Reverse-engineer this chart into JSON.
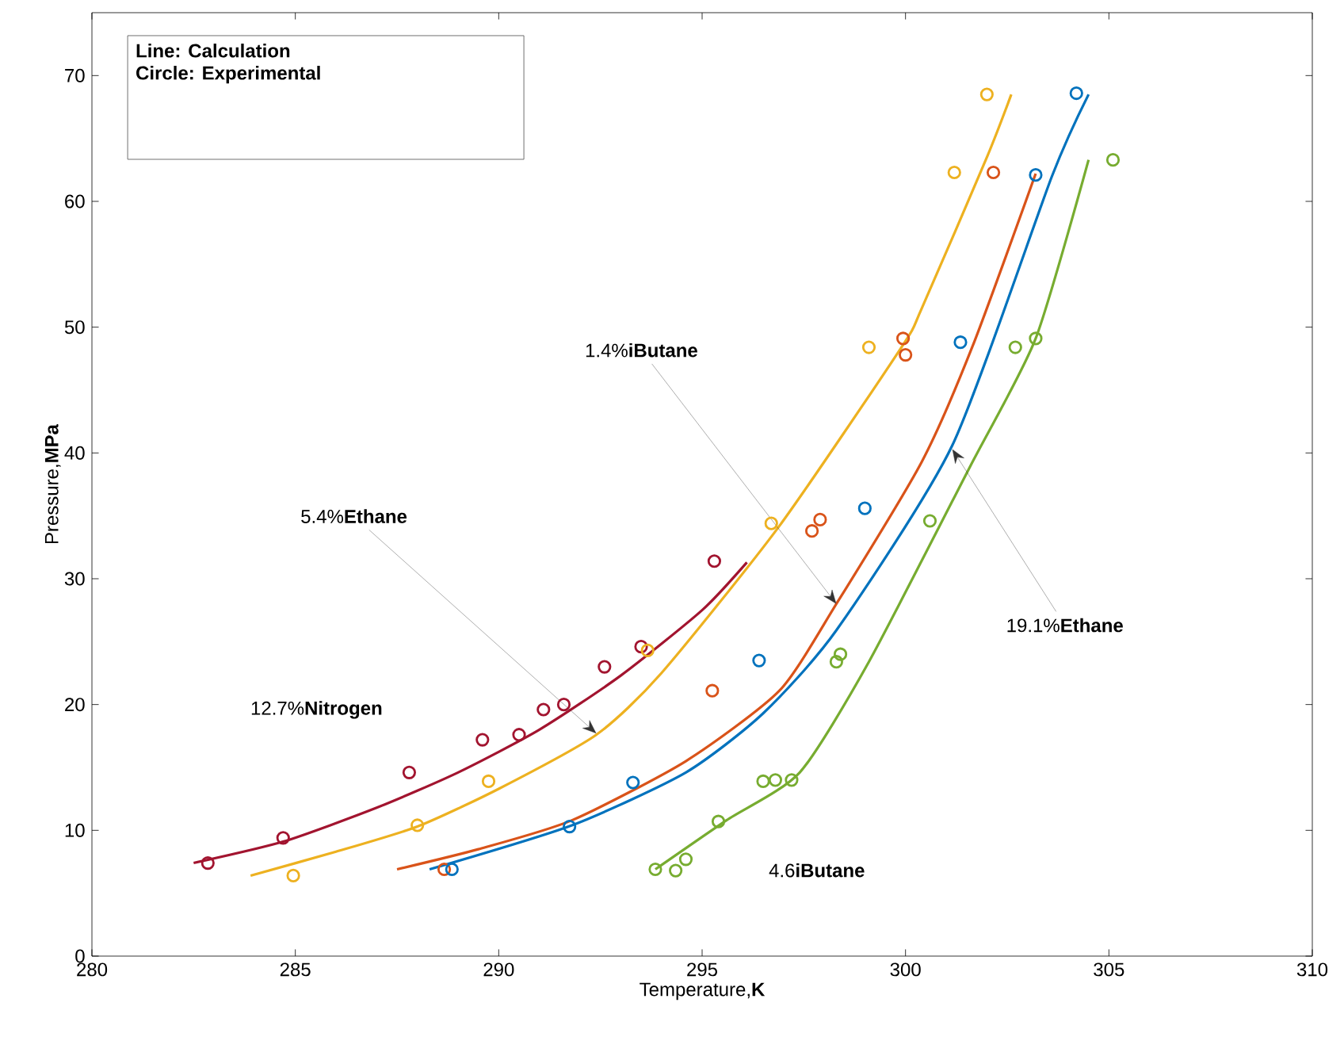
{
  "chart_data": {
    "type": "line",
    "xlabel": "Temperature,**K**",
    "ylabel": "Pressure,**MPa**",
    "xlim": [
      280,
      310
    ],
    "xticks": [
      280,
      285,
      290,
      295,
      300,
      305,
      310
    ],
    "ylim": [
      0,
      75
    ],
    "yticks": [
      0,
      10,
      20,
      30,
      40,
      50,
      60,
      70
    ],
    "grid": false,
    "series": [
      {
        "color": "#a2142f",
        "x": [
          282.5,
          284.7,
          287.0,
          289.0,
          291.0,
          293.0,
          295.0,
          296.1
        ],
        "values": [
          7.4,
          9.1,
          11.8,
          14.6,
          18.0,
          22.3,
          27.5,
          31.3
        ]
      },
      {
        "type": "scatter",
        "marker": "circle",
        "color": "#a2142f",
        "x": [
          282.85,
          284.7,
          287.8,
          289.6,
          290.5,
          291.1,
          291.6,
          292.6,
          293.5,
          295.3
        ],
        "values": [
          7.4,
          9.4,
          14.6,
          17.2,
          17.6,
          19.6,
          20.0,
          23.0,
          24.6,
          31.4
        ]
      },
      {
        "color": "#edb120",
        "x": [
          283.9,
          286.0,
          288.0,
          290.0,
          292.4,
          294.0,
          296.9,
          299.9,
          300.4,
          302.0,
          302.6
        ],
        "values": [
          6.4,
          8.3,
          10.3,
          13.3,
          17.6,
          22.5,
          34.2,
          48.4,
          51.5,
          63.5,
          68.5
        ]
      },
      {
        "type": "scatter",
        "marker": "circle",
        "color": "#edb120",
        "x": [
          284.95,
          288.0,
          289.75,
          293.66,
          296.7,
          299.1,
          301.2,
          302.0
        ],
        "values": [
          6.4,
          10.4,
          13.9,
          24.3,
          34.4,
          48.4,
          62.3,
          68.5
        ]
      },
      {
        "color": "#d95319",
        "x": [
          287.5,
          289.5,
          291.8,
          294.6,
          296.9,
          298.3,
          300.4,
          301.65,
          303.2
        ],
        "values": [
          6.9,
          8.5,
          10.8,
          15.5,
          21.1,
          28.0,
          39.3,
          48.5,
          62.2
        ]
      },
      {
        "type": "scatter",
        "marker": "circle",
        "color": "#d95319",
        "x": [
          288.66,
          295.25,
          297.7,
          297.9,
          299.94,
          300.0,
          302.16
        ],
        "values": [
          6.9,
          21.1,
          33.8,
          34.7,
          49.1,
          47.8,
          62.3
        ]
      },
      {
        "color": "#0072bd",
        "x": [
          288.3,
          291.8,
          294.6,
          296.5,
          298.3,
          301.15,
          303.6,
          304.5
        ],
        "values": [
          6.9,
          10.4,
          14.6,
          19.3,
          25.9,
          40.6,
          62.0,
          68.5
        ]
      },
      {
        "type": "scatter",
        "marker": "circle",
        "color": "#0072bd",
        "x": [
          288.85,
          291.74,
          293.3,
          296.4,
          299.0,
          301.35,
          303.2,
          304.2
        ],
        "values": [
          6.9,
          10.3,
          13.8,
          23.5,
          35.6,
          48.8,
          62.1,
          68.6
        ]
      },
      {
        "color": "#77ac30",
        "x": [
          293.85,
          295.6,
          297.4,
          299.1,
          301.6,
          303.2,
          304.5
        ],
        "values": [
          6.9,
          10.8,
          14.6,
          23.4,
          39.0,
          49.1,
          63.3
        ]
      },
      {
        "type": "scatter",
        "marker": "circle",
        "color": "#77ac30",
        "x": [
          293.85,
          294.35,
          294.6,
          295.4,
          296.5,
          296.8,
          297.2,
          298.3,
          298.4,
          300.6,
          302.7,
          303.2,
          305.1
        ],
        "values": [
          6.9,
          6.8,
          7.7,
          10.7,
          13.9,
          14.0,
          14.0,
          23.4,
          24.0,
          34.6,
          48.4,
          49.1,
          63.3
        ]
      }
    ],
    "annotations": [
      "Line: Calculation",
      "Circle: Experimental",
      {
        "text": "1.4%**iButane**",
        "x": 298.3,
        "y": 28.0
      },
      {
        "text": "5.4%**Ethane**",
        "x": 292.4,
        "y": 17.7
      },
      {
        "text": "19.1%**Ethane**",
        "x": 301.15,
        "y": 40.3
      },
      "12.7%**Nitrogen**",
      "4.6**iButane**"
    ]
  }
}
